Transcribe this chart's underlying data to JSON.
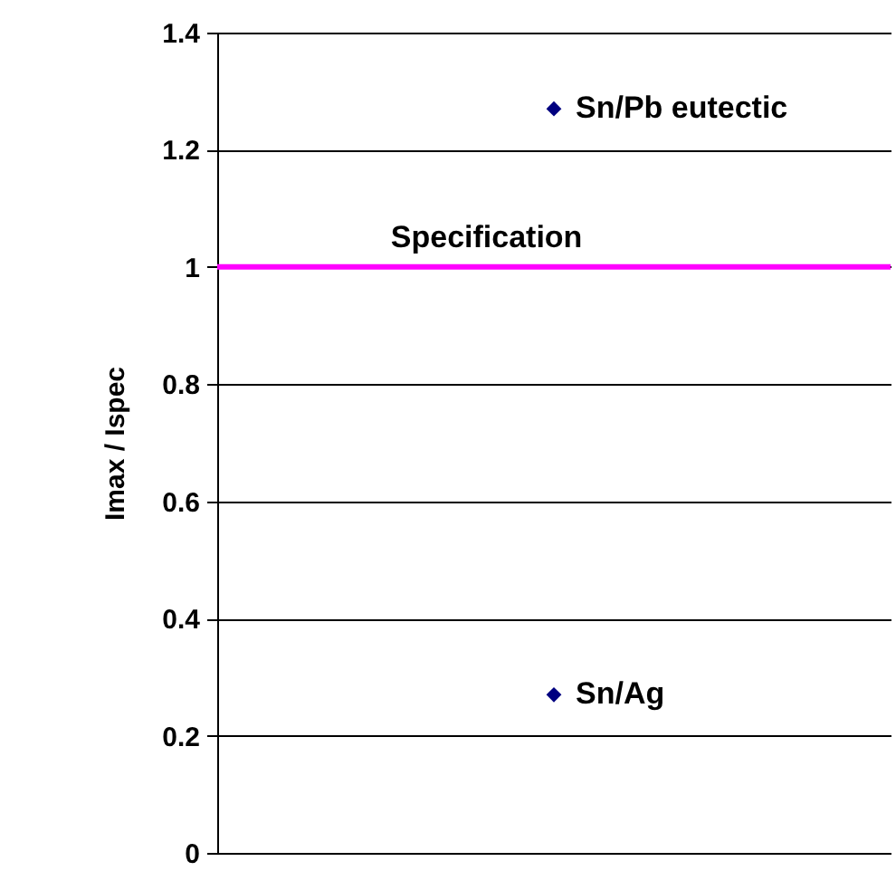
{
  "chart_data": {
    "type": "scatter",
    "categories": [
      null
    ],
    "series": [
      {
        "name": "Sn/Pb eutectic",
        "color": "#000080",
        "values": [
          1.27
        ]
      },
      {
        "name": "Sn/Ag",
        "color": "#000080",
        "values": [
          0.27
        ]
      }
    ],
    "ylabel": "Imax / Ispec",
    "ylim": [
      0,
      1.4
    ],
    "yticks": [
      0,
      0.2,
      0.4,
      0.6,
      0.8,
      1,
      1.2,
      1.4
    ],
    "grid": "y",
    "marker": "diamond",
    "tick_labels": "y",
    "ref_lines": [
      {
        "axis": "y",
        "value": 1,
        "label": "Specification",
        "color": "#ff00ff"
      }
    ]
  }
}
